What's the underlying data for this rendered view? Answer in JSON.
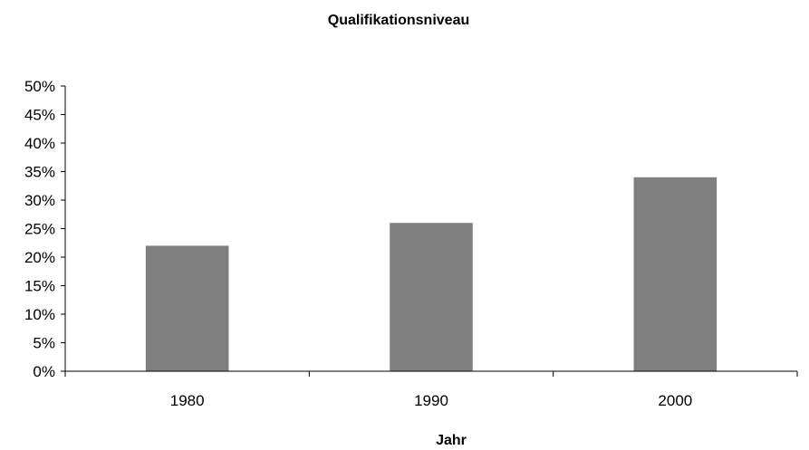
{
  "chart_data": {
    "type": "bar",
    "title": "Qualifikationsniveau",
    "xlabel": "Jahr",
    "ylabel": "",
    "categories": [
      "1980",
      "1990",
      "2000"
    ],
    "values": [
      22,
      26,
      34
    ],
    "ylim": [
      0,
      50
    ],
    "y_ticks": [
      "0%",
      "5%",
      "10%",
      "15%",
      "20%",
      "25%",
      "30%",
      "35%",
      "40%",
      "45%",
      "50%"
    ],
    "grid": false,
    "legend": "none",
    "colors": {
      "bar": "#808080",
      "axis": "#000000"
    }
  }
}
